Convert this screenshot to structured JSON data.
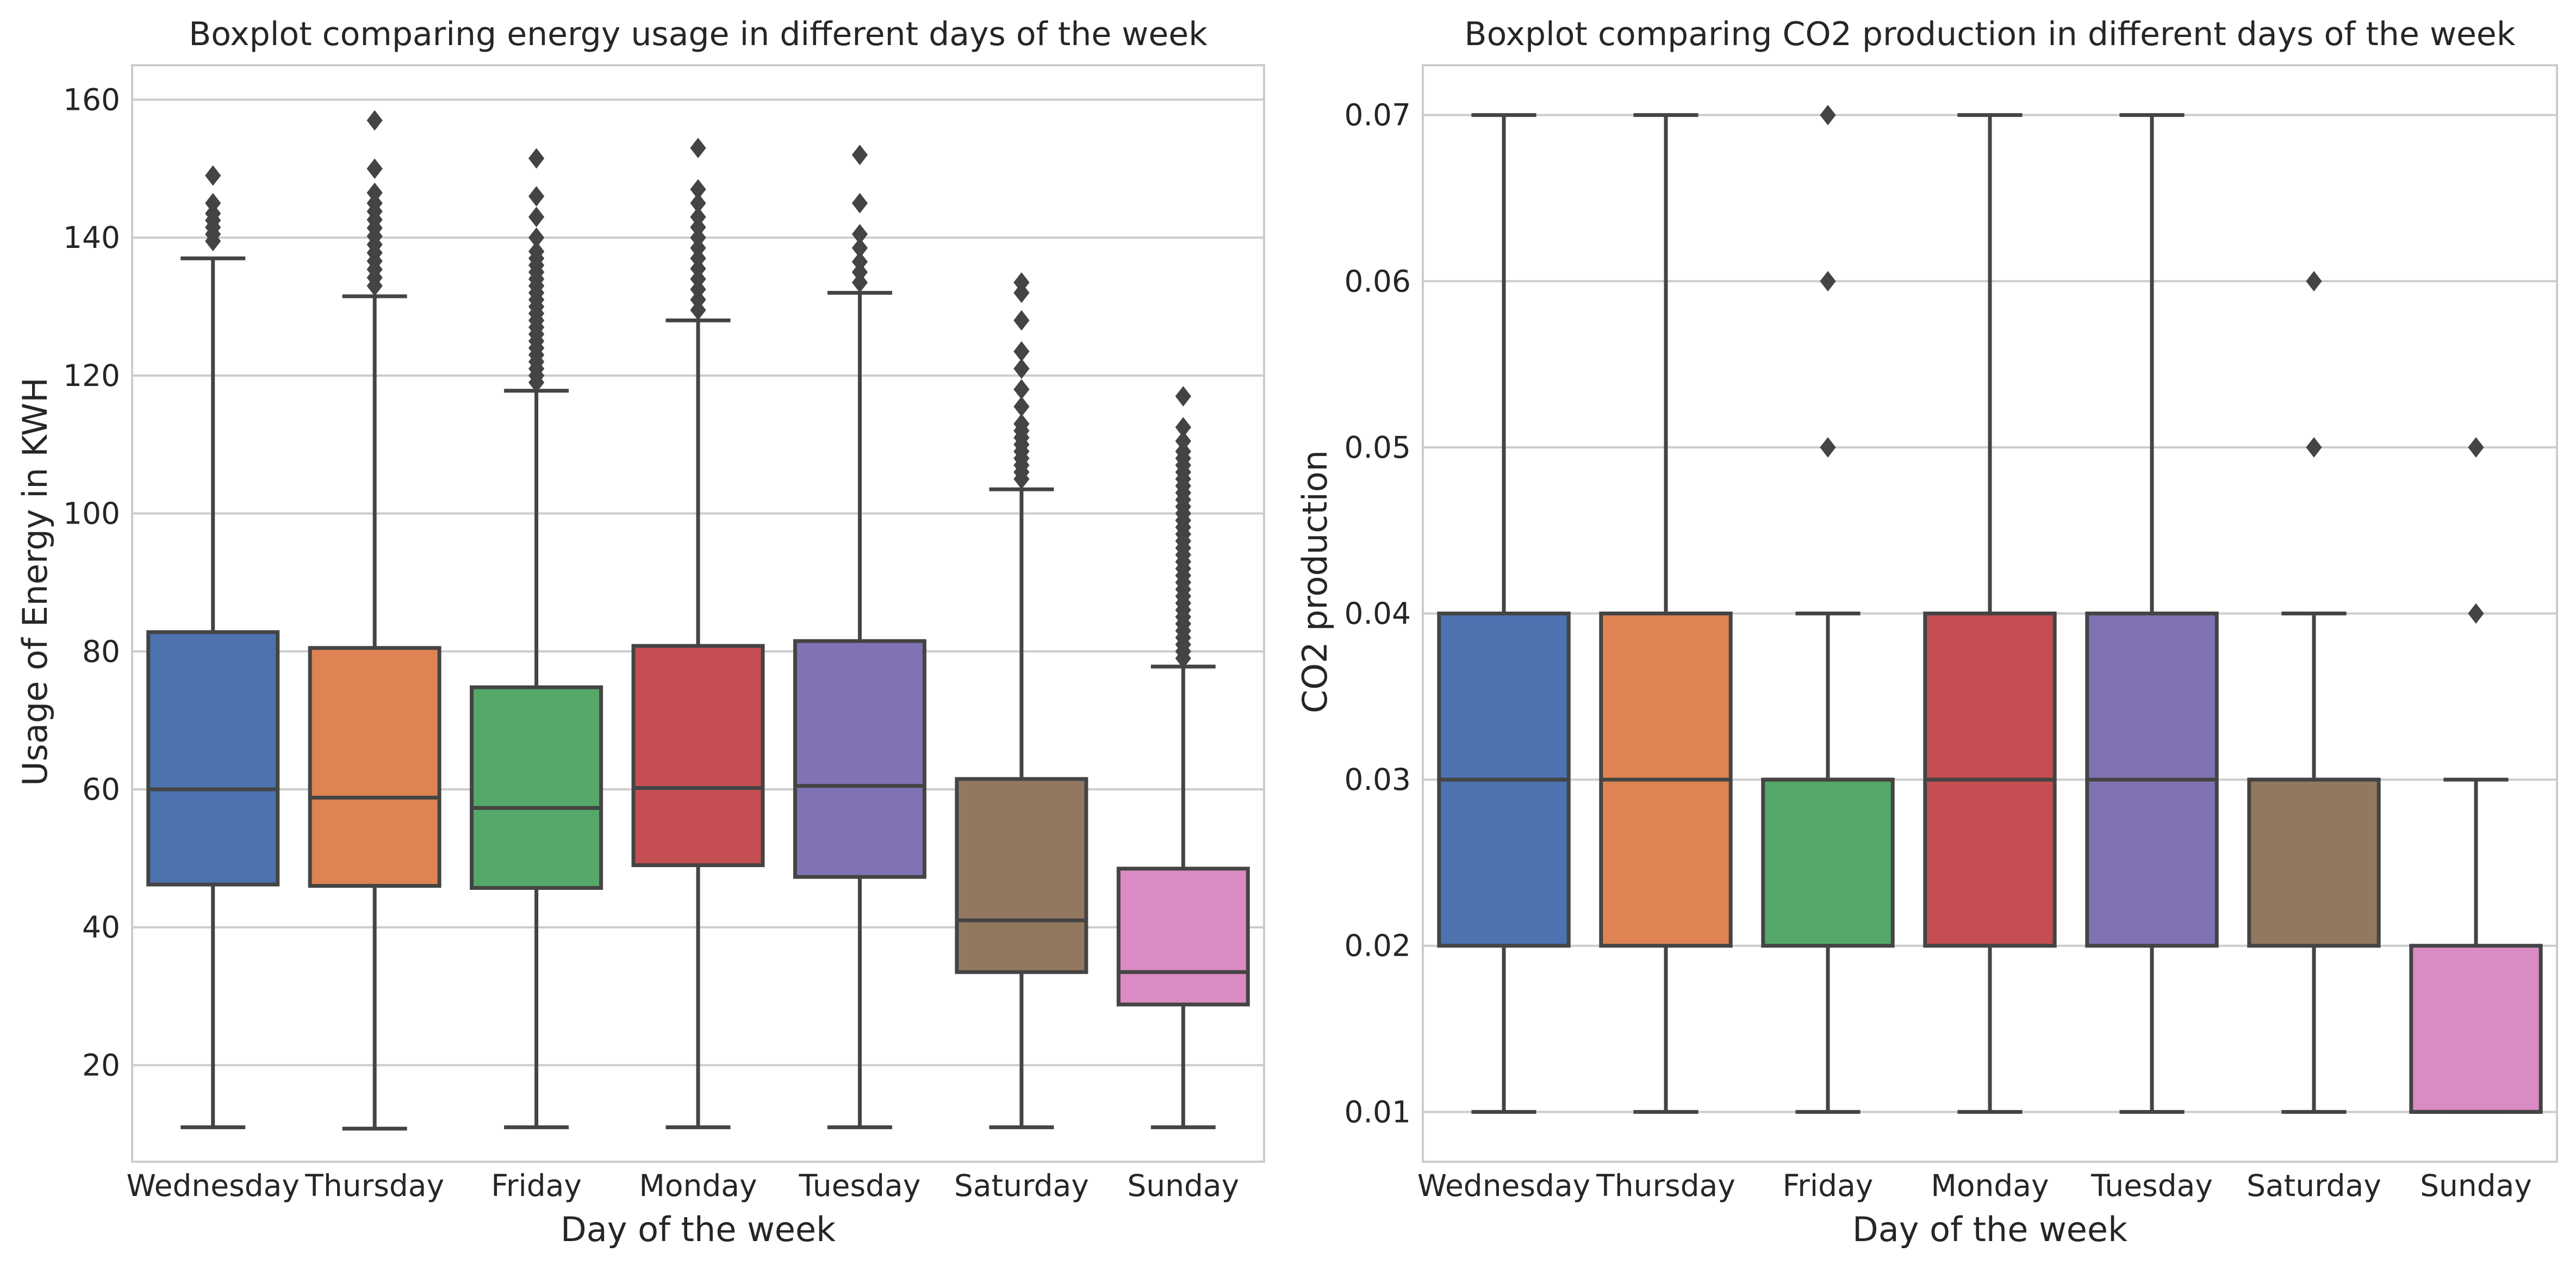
{
  "chart_data": [
    {
      "type": "boxplot",
      "title": "Boxplot comparing energy usage in different days of the week",
      "xlabel": "Day of the week",
      "ylabel": "Usage of Energy in KWH",
      "ylim": [
        6,
        165
      ],
      "yticks": [
        "20",
        "40",
        "60",
        "80",
        "100",
        "120",
        "140",
        "160"
      ],
      "ytick_values": [
        20,
        40,
        60,
        80,
        100,
        120,
        140,
        160
      ],
      "grid": true,
      "categories": [
        "Wednesday",
        "Thursday",
        "Friday",
        "Monday",
        "Tuesday",
        "Saturday",
        "Sunday"
      ],
      "colors": [
        "#4C72B0",
        "#DD8452",
        "#55A868",
        "#C44E52",
        "#8172B3",
        "#937860",
        "#DA8BC3"
      ],
      "boxes": [
        {
          "whislo": 11,
          "q1": 46.2,
          "med": 60,
          "q3": 82.8,
          "whishi": 137,
          "fliers": [
            139.5,
            140.5,
            141.5,
            142.5,
            143.5,
            145,
            149
          ]
        },
        {
          "whislo": 10.8,
          "q1": 46,
          "med": 58.8,
          "q3": 80.5,
          "whishi": 131.5,
          "fliers": [
            133,
            134.2,
            135.4,
            136.6,
            137.8,
            139,
            140.2,
            141.4,
            142.6,
            143.8,
            145,
            146.5,
            150,
            157
          ]
        },
        {
          "whislo": 11,
          "q1": 45.7,
          "med": 57.3,
          "q3": 74.8,
          "whishi": 117.8,
          "fliers": [
            119,
            120,
            121,
            122,
            123,
            124,
            125,
            126,
            127,
            128,
            129,
            130,
            131,
            132,
            133,
            134,
            135,
            136,
            137,
            138,
            140,
            143,
            146,
            151.5
          ]
        },
        {
          "whislo": 11,
          "q1": 49,
          "med": 60.2,
          "q3": 80.8,
          "whishi": 128,
          "fliers": [
            129.5,
            131,
            132.5,
            134,
            135.5,
            137,
            138.5,
            140,
            141.5,
            143,
            145,
            147,
            153
          ]
        },
        {
          "whislo": 11,
          "q1": 47.3,
          "med": 60.5,
          "q3": 81.5,
          "whishi": 132,
          "fliers": [
            133.5,
            135,
            136.5,
            138.5,
            140.5,
            145,
            152
          ]
        },
        {
          "whislo": 11,
          "q1": 33.5,
          "med": 41,
          "q3": 61.5,
          "whishi": 103.5,
          "fliers": [
            105,
            106,
            107,
            108,
            109,
            110,
            111,
            112,
            113,
            115.5,
            118,
            121,
            123.5,
            128,
            132,
            133.5
          ]
        },
        {
          "whislo": 11,
          "q1": 28.8,
          "med": 33.5,
          "q3": 48.5,
          "whishi": 77.8,
          "fliers": [
            79,
            80,
            81,
            82,
            83,
            84,
            85,
            86,
            87,
            88,
            89,
            90,
            91,
            92,
            93,
            94,
            95,
            96,
            97,
            98,
            99,
            100,
            101,
            102,
            103,
            104,
            105,
            106,
            107,
            108,
            109,
            110.5,
            112.5,
            117
          ]
        }
      ]
    },
    {
      "type": "boxplot",
      "title": "Boxplot comparing CO2 production in different days of the week",
      "xlabel": "Day of the week",
      "ylabel": "CO2 production",
      "ylim": [
        0.007,
        0.073
      ],
      "yticks": [
        "0.01",
        "0.02",
        "0.03",
        "0.04",
        "0.05",
        "0.06",
        "0.07"
      ],
      "ytick_values": [
        0.01,
        0.02,
        0.03,
        0.04,
        0.05,
        0.06,
        0.07
      ],
      "grid": true,
      "categories": [
        "Wednesday",
        "Thursday",
        "Friday",
        "Monday",
        "Tuesday",
        "Saturday",
        "Sunday"
      ],
      "colors": [
        "#4C72B0",
        "#DD8452",
        "#55A868",
        "#C44E52",
        "#8172B3",
        "#937860",
        "#DA8BC3"
      ],
      "boxes": [
        {
          "whislo": 0.01,
          "q1": 0.02,
          "med": 0.03,
          "q3": 0.04,
          "whishi": 0.07,
          "fliers": []
        },
        {
          "whislo": 0.01,
          "q1": 0.02,
          "med": 0.03,
          "q3": 0.04,
          "whishi": 0.07,
          "fliers": []
        },
        {
          "whislo": 0.01,
          "q1": 0.02,
          "med": 0.03,
          "q3": 0.03,
          "whishi": 0.04,
          "fliers": [
            0.05,
            0.06,
            0.07
          ]
        },
        {
          "whislo": 0.01,
          "q1": 0.02,
          "med": 0.03,
          "q3": 0.04,
          "whishi": 0.07,
          "fliers": []
        },
        {
          "whislo": 0.01,
          "q1": 0.02,
          "med": 0.03,
          "q3": 0.04,
          "whishi": 0.07,
          "fliers": []
        },
        {
          "whislo": 0.01,
          "q1": 0.02,
          "med": 0.03,
          "q3": 0.03,
          "whishi": 0.04,
          "fliers": [
            0.05,
            0.06
          ]
        },
        {
          "whislo": 0.01,
          "q1": 0.01,
          "med": 0.01,
          "q3": 0.02,
          "whishi": 0.03,
          "fliers": [
            0.04,
            0.05
          ]
        }
      ]
    }
  ]
}
